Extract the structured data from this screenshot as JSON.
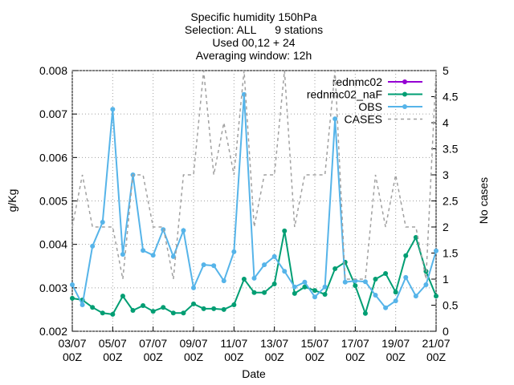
{
  "chart_data": {
    "type": "line",
    "title": [
      "Specific humidity 150hPa",
      "Selection: ALL      9 stations",
      "Used 00,12 + 24",
      "Averaging window: 12h"
    ],
    "xlabel": "Date",
    "ylabel": "g/Kg",
    "y2label": "No cases",
    "categories": [
      "03/07 00Z",
      null,
      null,
      null,
      "05/07 00Z",
      null,
      null,
      null,
      "07/07 00Z",
      null,
      null,
      null,
      "09/07 00Z",
      null,
      null,
      null,
      "11/07 00Z",
      null,
      null,
      null,
      "13/07 00Z",
      null,
      null,
      null,
      "15/07 00Z",
      null,
      null,
      null,
      "17/07 00Z",
      null,
      null,
      null,
      "19/07 00Z",
      null,
      null,
      null,
      "21/07 00Z"
    ],
    "ylim": [
      0.002,
      0.008
    ],
    "yticks": [
      0.002,
      0.003,
      0.004,
      0.005,
      0.006,
      0.007,
      0.008
    ],
    "y2lim": [
      0,
      5
    ],
    "y2ticks": [
      0,
      0.5,
      1,
      1.5,
      2,
      2.5,
      3,
      3.5,
      4,
      4.5,
      5
    ],
    "grid": true,
    "legend": "top-right",
    "series": [
      {
        "name": "rednmc02",
        "color": "#9400d3",
        "values": [
          null,
          null,
          null,
          null,
          null,
          null,
          null,
          null,
          null,
          null,
          null,
          null,
          null,
          null,
          null,
          null,
          null,
          null,
          null,
          null,
          null,
          null,
          null,
          null,
          null,
          null,
          null,
          null,
          null,
          null,
          null,
          null,
          null,
          null,
          null,
          null,
          null
        ]
      },
      {
        "name": "rednmc02_naF",
        "color": "#009e73",
        "values": [
          0.00276,
          0.00272,
          0.00255,
          0.00242,
          0.00239,
          0.00281,
          0.00248,
          0.00259,
          0.00246,
          0.00255,
          0.00242,
          0.00242,
          0.00263,
          0.00252,
          0.00252,
          0.0025,
          0.00261,
          0.0032,
          0.00289,
          0.00289,
          0.00309,
          0.00431,
          0.00287,
          0.00302,
          0.00294,
          0.00285,
          0.00344,
          0.00359,
          0.00305,
          0.00241,
          0.0032,
          0.00333,
          0.0029,
          0.00374,
          0.00416,
          0.00338,
          0.00281
        ]
      },
      {
        "name": "OBS",
        "color": "#56b4e9",
        "values": [
          0.00307,
          0.00261,
          0.00396,
          0.00451,
          0.00711,
          0.00377,
          0.0056,
          0.00386,
          0.00375,
          0.00434,
          0.00372,
          0.00432,
          0.003,
          0.00353,
          0.00351,
          0.00316,
          0.00383,
          0.00745,
          0.00322,
          0.00353,
          0.00372,
          0.00338,
          0.00302,
          0.00313,
          0.00279,
          0.00302,
          0.00689,
          0.00313,
          0.00316,
          0.00314,
          0.00283,
          0.00254,
          0.0027,
          0.00324,
          0.00281,
          0.00307,
          0.00385
        ]
      },
      {
        "name": "CASES",
        "color": "#a0a0a0",
        "axis": "y2",
        "dashed": true,
        "values": [
          2,
          3,
          2,
          2,
          2,
          1,
          3,
          3,
          2,
          2,
          1,
          3,
          3,
          5,
          3,
          4,
          3,
          5,
          2,
          3,
          3,
          5,
          2,
          3,
          3,
          3,
          5,
          1,
          1,
          1,
          3,
          2,
          3,
          2,
          2,
          1,
          5
        ]
      }
    ]
  }
}
